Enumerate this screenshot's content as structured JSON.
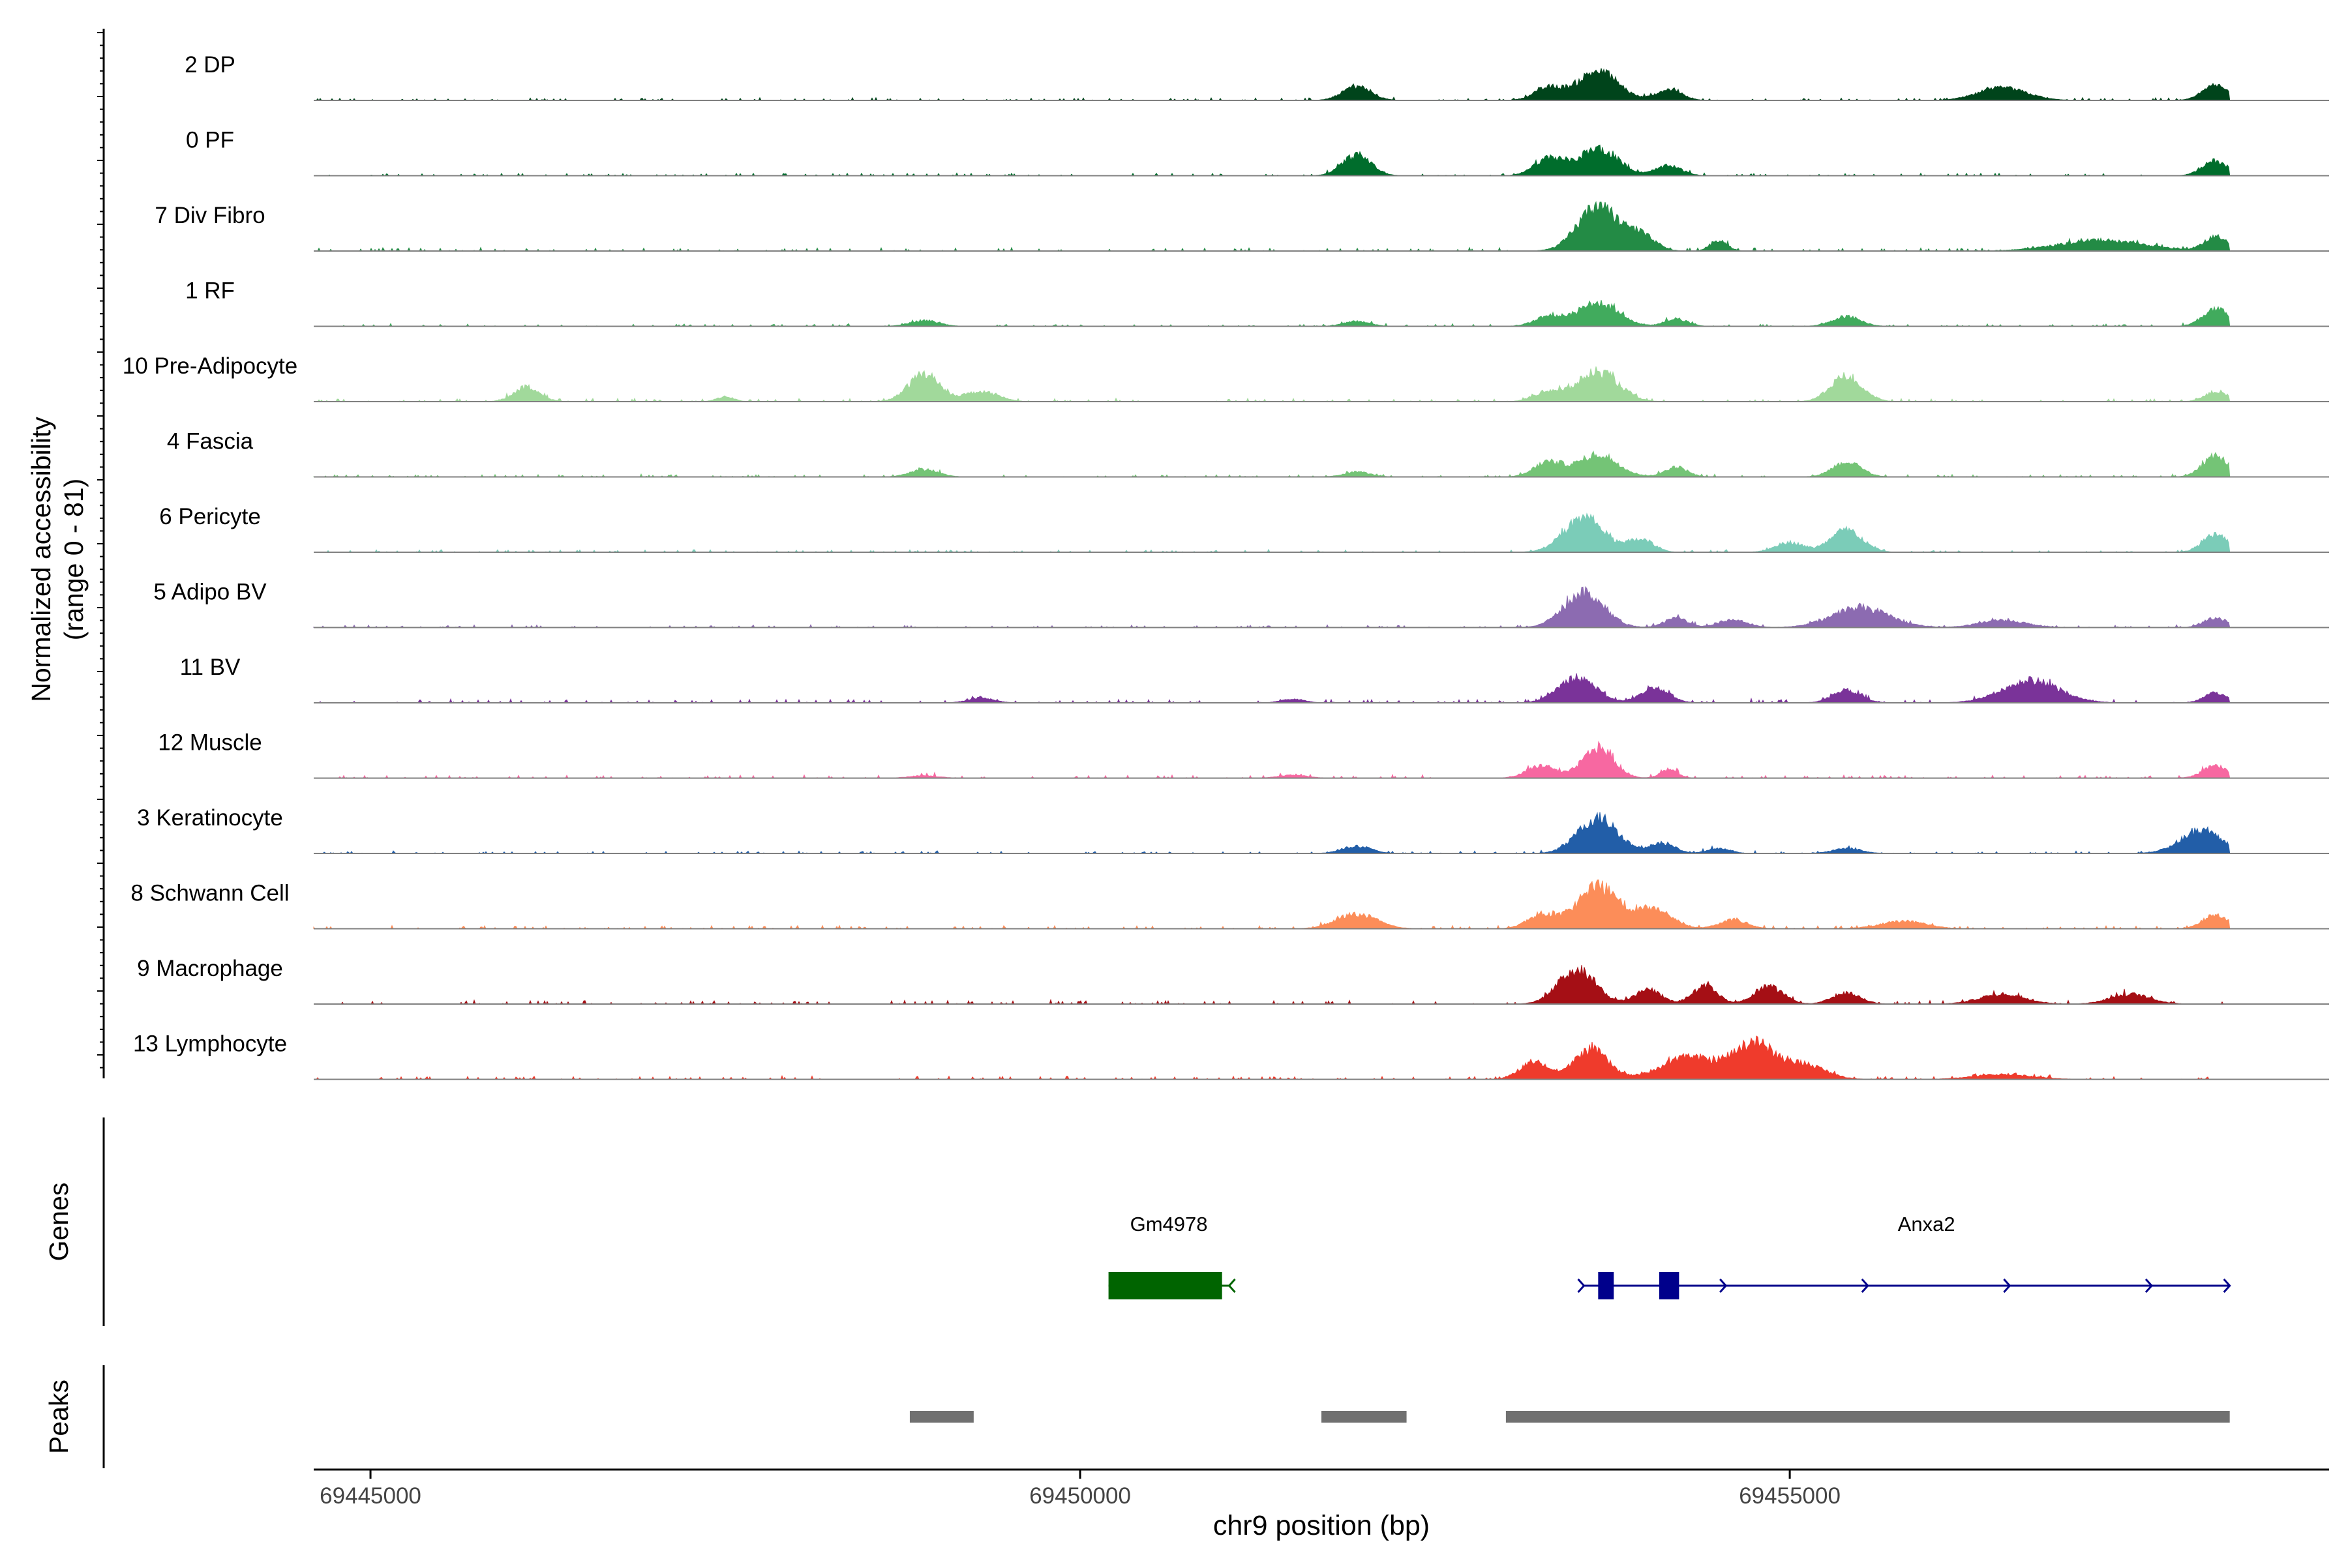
{
  "chart_data": {
    "type": "area",
    "title": "",
    "chromosome": "chr9",
    "xlabel": "chr9 position (bp)",
    "ylabel_line1": "Normalized accessibility",
    "ylabel_line2": "(range 0 - 81)",
    "y_range": [
      0,
      81
    ],
    "xlim": [
      69444600,
      69458800
    ],
    "data_end": 69458100,
    "x_ticks": [
      69445000,
      69450000,
      69455000
    ],
    "x_tick_labels": [
      "69445000",
      "69450000",
      "69455000"
    ],
    "peak_template": [
      [
        69447200,
        0.22,
        130
      ],
      [
        69448900,
        0.32,
        110
      ],
      [
        69450400,
        0.06,
        200
      ],
      [
        69451300,
        0.09,
        170
      ],
      [
        69451950,
        0.28,
        90
      ],
      [
        69452600,
        0.07,
        150
      ],
      [
        69453250,
        0.28,
        110
      ],
      [
        69453650,
        0.78,
        150
      ],
      [
        69453900,
        0.35,
        90
      ],
      [
        69454200,
        0.26,
        90
      ],
      [
        69454500,
        0.2,
        80
      ],
      [
        69454900,
        0.14,
        110
      ],
      [
        69455300,
        0.3,
        140
      ],
      [
        69455800,
        0.12,
        160
      ],
      [
        69456500,
        0.22,
        170
      ],
      [
        69457400,
        0.16,
        140
      ],
      [
        69458000,
        0.3,
        90
      ]
    ],
    "tracks": [
      {
        "name": "2 DP",
        "color": "#00441B",
        "noise": 0.04,
        "peaks": [
          [
            69451950,
            0.28,
            100
          ],
          [
            69453650,
            0.6,
            140
          ],
          [
            69453300,
            0.25,
            100
          ],
          [
            69454150,
            0.22,
            90
          ],
          [
            69456500,
            0.25,
            170
          ],
          [
            69458000,
            0.3,
            90
          ]
        ]
      },
      {
        "name": "0 PF",
        "color": "#006D2C",
        "noise": 0.04,
        "peaks": [
          [
            69451950,
            0.42,
            100
          ],
          [
            69453650,
            0.55,
            140
          ],
          [
            69453300,
            0.35,
            100
          ],
          [
            69454150,
            0.2,
            90
          ],
          [
            69458000,
            0.3,
            90
          ]
        ]
      },
      {
        "name": "7 Div Fibro",
        "color": "#238B45",
        "noise": 0.05,
        "peaks": [
          [
            69453650,
            0.92,
            140
          ],
          [
            69453950,
            0.3,
            100
          ],
          [
            69454500,
            0.22,
            60
          ],
          [
            69457200,
            0.22,
            300
          ],
          [
            69458000,
            0.28,
            80
          ]
        ]
      },
      {
        "name": "1 RF",
        "color": "#41AB5D",
        "noise": 0.04,
        "peaks": [
          [
            69448900,
            0.12,
            100
          ],
          [
            69451950,
            0.1,
            90
          ],
          [
            69453650,
            0.48,
            140
          ],
          [
            69453300,
            0.2,
            100
          ],
          [
            69454200,
            0.15,
            80
          ],
          [
            69455400,
            0.2,
            100
          ],
          [
            69458000,
            0.35,
            90
          ]
        ]
      },
      {
        "name": "10 Pre-Adipocyte",
        "color": "#A1D99B",
        "noise": 0.05,
        "peaks": [
          [
            69446100,
            0.3,
            90
          ],
          [
            69447500,
            0.1,
            60
          ],
          [
            69448900,
            0.55,
            110
          ],
          [
            69449300,
            0.2,
            120
          ],
          [
            69453650,
            0.62,
            140
          ],
          [
            69453300,
            0.2,
            100
          ],
          [
            69455400,
            0.52,
            110
          ],
          [
            69458000,
            0.2,
            80
          ]
        ]
      },
      {
        "name": "4 Fascia",
        "color": "#74C476",
        "noise": 0.04,
        "peaks": [
          [
            69448900,
            0.15,
            100
          ],
          [
            69451950,
            0.1,
            90
          ],
          [
            69453650,
            0.45,
            140
          ],
          [
            69453300,
            0.3,
            100
          ],
          [
            69454200,
            0.2,
            80
          ],
          [
            69455400,
            0.3,
            100
          ],
          [
            69458000,
            0.42,
            90
          ]
        ]
      },
      {
        "name": "6 Pericyte",
        "color": "#7BCCB8",
        "noise": 0.04,
        "peaks": [
          [
            69453550,
            0.7,
            140
          ],
          [
            69453950,
            0.25,
            90
          ],
          [
            69455400,
            0.45,
            110
          ],
          [
            69455000,
            0.2,
            100
          ],
          [
            69458000,
            0.35,
            90
          ]
        ]
      },
      {
        "name": "5 Adipo BV",
        "color": "#8C6BB1",
        "noise": 0.04,
        "peaks": [
          [
            69453550,
            0.72,
            140
          ],
          [
            69454200,
            0.2,
            80
          ],
          [
            69454600,
            0.15,
            100
          ],
          [
            69455500,
            0.4,
            200
          ],
          [
            69456500,
            0.15,
            160
          ],
          [
            69458000,
            0.2,
            80
          ]
        ]
      },
      {
        "name": "11 BV",
        "color": "#7A3399",
        "noise": 0.06,
        "peaks": [
          [
            69449300,
            0.1,
            90
          ],
          [
            69451500,
            0.08,
            80
          ],
          [
            69453500,
            0.52,
            130
          ],
          [
            69454050,
            0.3,
            100
          ],
          [
            69455400,
            0.25,
            100
          ],
          [
            69456700,
            0.45,
            200
          ],
          [
            69458000,
            0.2,
            80
          ]
        ]
      },
      {
        "name": "12 Muscle",
        "color": "#F768A1",
        "noise": 0.05,
        "peaks": [
          [
            69448900,
            0.05,
            100
          ],
          [
            69451500,
            0.06,
            100
          ],
          [
            69453250,
            0.25,
            100
          ],
          [
            69453650,
            0.62,
            110
          ],
          [
            69454150,
            0.18,
            60
          ],
          [
            69458000,
            0.24,
            90
          ]
        ]
      },
      {
        "name": "3 Keratinocyte",
        "color": "#225EA8",
        "noise": 0.04,
        "peaks": [
          [
            69451950,
            0.15,
            100
          ],
          [
            69453650,
            0.72,
            140
          ],
          [
            69454100,
            0.2,
            90
          ],
          [
            69454500,
            0.1,
            80
          ],
          [
            69455400,
            0.1,
            100
          ],
          [
            69457900,
            0.45,
            150
          ]
        ]
      },
      {
        "name": "8 Schwann Cell",
        "color": "#FC8D59",
        "noise": 0.05,
        "peaks": [
          [
            69451950,
            0.3,
            140
          ],
          [
            69453250,
            0.28,
            100
          ],
          [
            69453650,
            0.85,
            150
          ],
          [
            69454050,
            0.4,
            120
          ],
          [
            69454600,
            0.18,
            100
          ],
          [
            69455800,
            0.15,
            160
          ],
          [
            69458000,
            0.28,
            90
          ]
        ]
      },
      {
        "name": "9 Macrophage",
        "color": "#A50F15",
        "noise": 0.06,
        "peaks": [
          [
            69453500,
            0.7,
            130
          ],
          [
            69454000,
            0.3,
            90
          ],
          [
            69454400,
            0.35,
            90
          ],
          [
            69454850,
            0.35,
            100
          ],
          [
            69455400,
            0.22,
            100
          ],
          [
            69456500,
            0.2,
            160
          ],
          [
            69457400,
            0.2,
            140
          ]
        ]
      },
      {
        "name": "13 Lymphocyte",
        "color": "#EF3B2C",
        "noise": 0.05,
        "peaks": [
          [
            69453200,
            0.35,
            100
          ],
          [
            69453600,
            0.6,
            120
          ],
          [
            69454300,
            0.45,
            200
          ],
          [
            69454750,
            0.7,
            140
          ],
          [
            69455100,
            0.3,
            150
          ],
          [
            69456500,
            0.1,
            200
          ]
        ]
      }
    ],
    "genes_label": "Genes",
    "genes": [
      {
        "name": "Gm4978",
        "strand": "-",
        "color": "#006400",
        "start": 69450200,
        "end": 69451050,
        "exons": [
          [
            69450200,
            69451000
          ]
        ]
      },
      {
        "name": "Anxa2",
        "strand": "+",
        "color": "#00008B",
        "start": 69453550,
        "end": 69458100,
        "exons": [
          [
            69453650,
            69453760
          ],
          [
            69454080,
            69454220
          ]
        ]
      }
    ],
    "peaks_label": "Peaks",
    "peaks_color": "#707070",
    "peaks": [
      [
        69448800,
        69449250
      ],
      [
        69451700,
        69452300
      ],
      [
        69453000,
        69458100
      ]
    ]
  }
}
